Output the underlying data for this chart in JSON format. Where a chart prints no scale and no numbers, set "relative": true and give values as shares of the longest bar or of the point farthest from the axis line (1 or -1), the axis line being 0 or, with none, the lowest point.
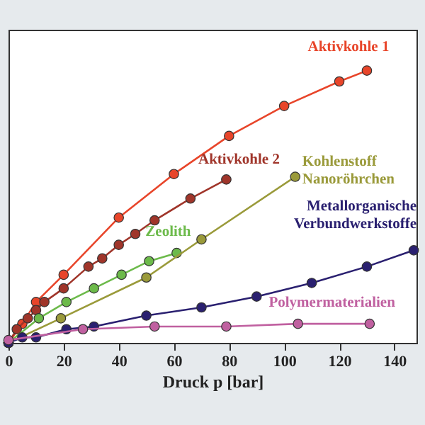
{
  "chart_data": {
    "type": "line",
    "relative": true,
    "xlabel": "Druck p [bar]",
    "xlim": [
      0,
      148
    ],
    "xticks": [
      0,
      20,
      40,
      60,
      80,
      100,
      120,
      140
    ],
    "marker": "circle",
    "line_style": "solid",
    "grid": false,
    "series": [
      {
        "name": "Aktivkohle 1",
        "color": "#e8452a",
        "x": [
          0,
          5,
          10,
          20,
          40,
          60,
          80,
          100,
          120,
          130
        ],
        "values": [
          0,
          0.07,
          0.15,
          0.25,
          0.46,
          0.62,
          0.76,
          0.87,
          0.96,
          1
        ]
      },
      {
        "name": "Aktivkohle 2",
        "color": "#a0352a",
        "x": [
          0,
          3,
          7,
          10,
          13,
          20,
          29,
          34,
          40,
          46,
          53,
          66,
          79
        ],
        "values": [
          0,
          0.05,
          0.09,
          0.12,
          0.15,
          0.2,
          0.28,
          0.31,
          0.36,
          0.4,
          0.45,
          0.53,
          0.6
        ]
      },
      {
        "name": "Zeolith",
        "color": "#6cba4a",
        "x": [
          0,
          11,
          21,
          31,
          41,
          51,
          61
        ],
        "values": [
          0,
          0.09,
          0.15,
          0.2,
          0.25,
          0.3,
          0.33
        ]
      },
      {
        "name": "Kohlenstoff Nanoröhrchen",
        "color": "#9a9a3a",
        "x": [
          0,
          19,
          50,
          70,
          104
        ],
        "values": [
          0,
          0.09,
          0.24,
          0.38,
          0.61
        ]
      },
      {
        "name": "Metallorganische Verbundwerkstoffe",
        "color": "#2a2070",
        "x": [
          0,
          5,
          10,
          21,
          31,
          50,
          70,
          90,
          110,
          130,
          147
        ],
        "values": [
          0,
          0.02,
          0.02,
          0.05,
          0.06,
          0.1,
          0.13,
          0.17,
          0.22,
          0.28,
          0.34
        ]
      },
      {
        "name": "Polymermaterialien",
        "color": "#c060a0",
        "x": [
          0,
          27,
          53,
          79,
          105,
          131
        ],
        "values": [
          0.01,
          0.05,
          0.06,
          0.06,
          0.07,
          0.07
        ]
      }
    ]
  }
}
